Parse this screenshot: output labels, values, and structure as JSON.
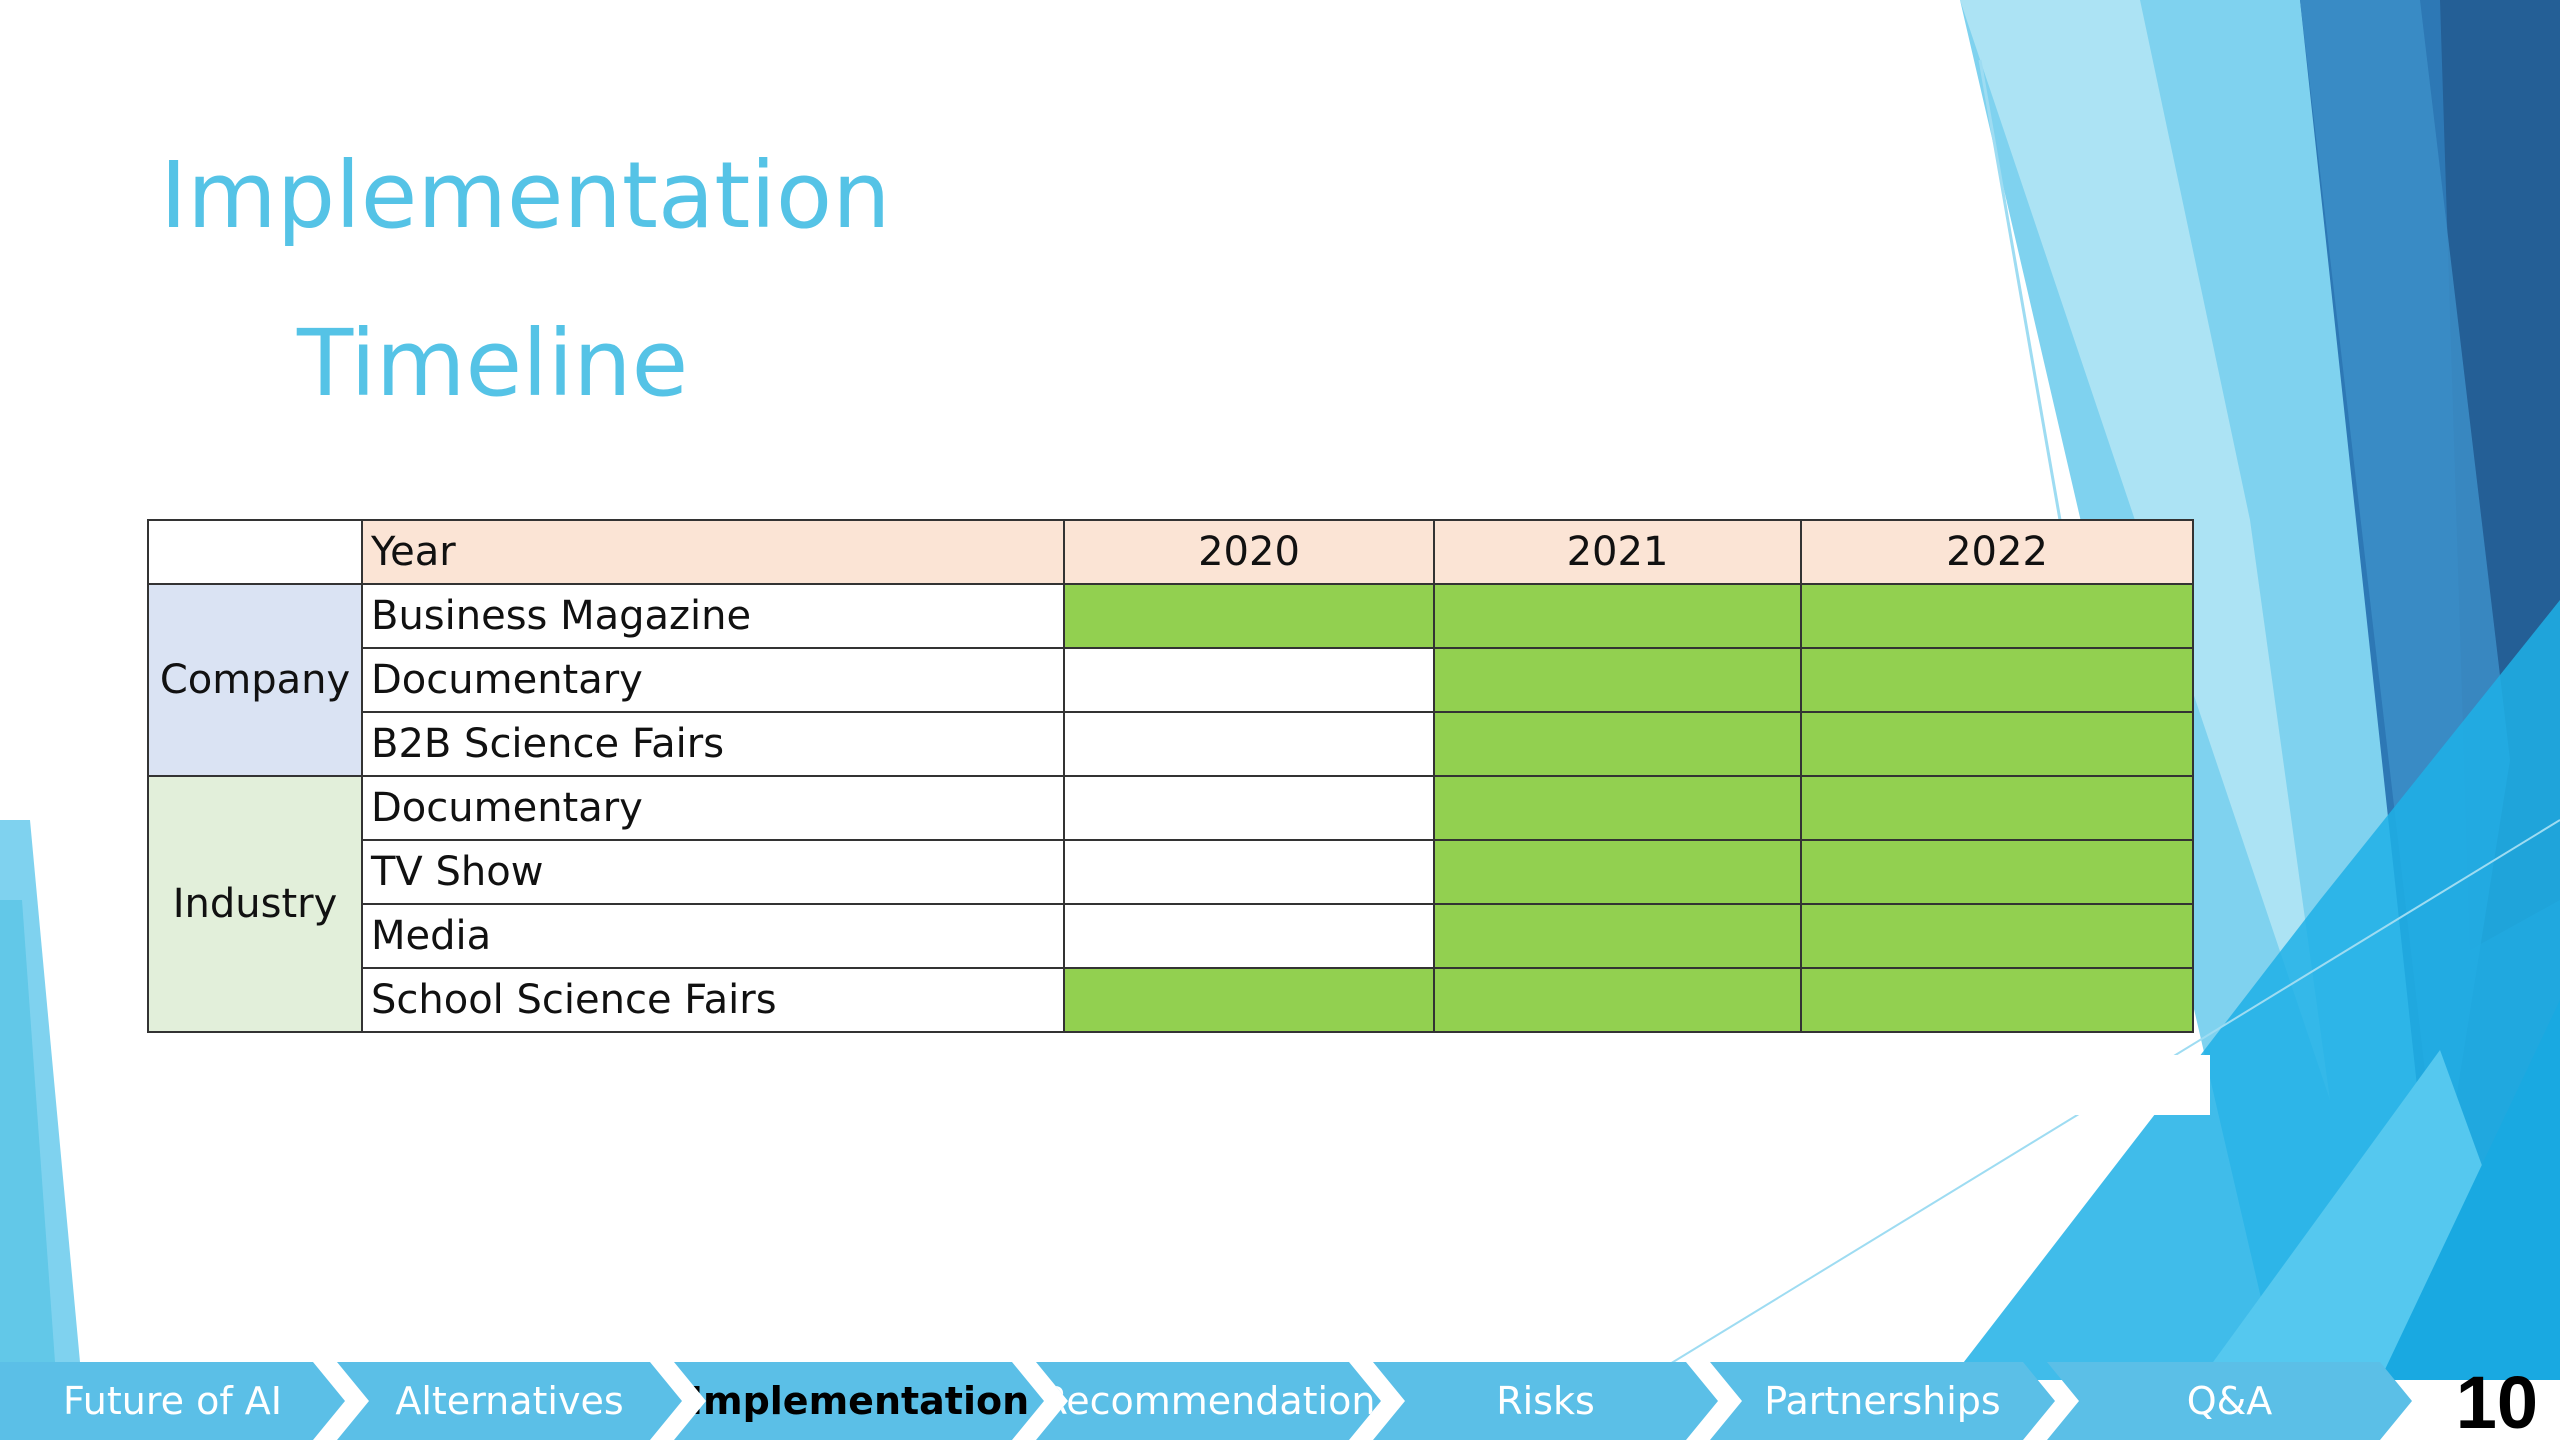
{
  "slide": {
    "title_line1": "Implementation",
    "title_line2": "Timeline",
    "page_number": "10"
  },
  "table": {
    "header": [
      "Year",
      "2020",
      "2021",
      "2022"
    ],
    "groups": [
      {
        "name": "Company",
        "rows": [
          {
            "label": "Business Magazine",
            "active": [
              true,
              true,
              true
            ]
          },
          {
            "label": "Documentary",
            "active": [
              false,
              true,
              true
            ]
          },
          {
            "label": "B2B Science Fairs",
            "active": [
              false,
              true,
              true
            ]
          }
        ]
      },
      {
        "name": "Industry",
        "rows": [
          {
            "label": "Documentary",
            "active": [
              false,
              true,
              true
            ]
          },
          {
            "label": "TV Show",
            "active": [
              false,
              true,
              true
            ]
          },
          {
            "label": "Media",
            "active": [
              false,
              true,
              true
            ]
          },
          {
            "label": "School Science Fairs",
            "active": [
              true,
              true,
              true
            ]
          }
        ]
      }
    ]
  },
  "nav": {
    "items": [
      {
        "label": "Future of AI",
        "active": false
      },
      {
        "label": "Alternatives",
        "active": false
      },
      {
        "label": "Implementation",
        "active": true
      },
      {
        "label": "Recommendation",
        "active": false
      },
      {
        "label": "Risks",
        "active": false
      },
      {
        "label": "Partnerships",
        "active": false
      },
      {
        "label": "Q&A",
        "active": false
      }
    ]
  },
  "colors": {
    "title": "#55c3e6",
    "active_cell": "#92d050",
    "header_fill": "#fbe4d5",
    "company_fill": "#dae3f3",
    "industry_fill": "#e2efda",
    "nav_fill": "#5bbfe7"
  }
}
